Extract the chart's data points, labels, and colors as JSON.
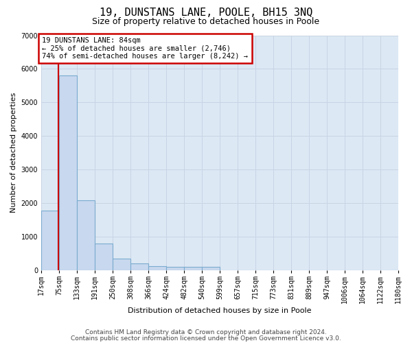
{
  "title": "19, DUNSTANS LANE, POOLE, BH15 3NQ",
  "subtitle": "Size of property relative to detached houses in Poole",
  "xlabel": "Distribution of detached houses by size in Poole",
  "ylabel": "Number of detached properties",
  "bin_labels": [
    "17sqm",
    "75sqm",
    "133sqm",
    "191sqm",
    "250sqm",
    "308sqm",
    "366sqm",
    "424sqm",
    "482sqm",
    "540sqm",
    "599sqm",
    "657sqm",
    "715sqm",
    "773sqm",
    "831sqm",
    "889sqm",
    "947sqm",
    "1006sqm",
    "1064sqm",
    "1122sqm",
    "1180sqm"
  ],
  "bar_heights": [
    1780,
    5800,
    2080,
    800,
    340,
    200,
    120,
    100,
    100,
    100,
    0,
    0,
    0,
    0,
    0,
    0,
    0,
    0,
    0,
    0
  ],
  "bar_color": "#c8d8ee",
  "bar_edge_color": "#7aabcf",
  "property_bin_index": 1,
  "vline_color": "#cc0000",
  "vline_x": 0.95,
  "annotation_line1": "19 DUNSTANS LANE: 84sqm",
  "annotation_line2": "← 25% of detached houses are smaller (2,746)",
  "annotation_line3": "74% of semi-detached houses are larger (8,242) →",
  "annotation_box_facecolor": "#ffffff",
  "annotation_box_edgecolor": "#cc0000",
  "ylim": [
    0,
    7000
  ],
  "yticks": [
    0,
    1000,
    2000,
    3000,
    4000,
    5000,
    6000,
    7000
  ],
  "grid_color": "#c8d4e4",
  "background_color": "#dce8f4",
  "footer_line1": "Contains HM Land Registry data © Crown copyright and database right 2024.",
  "footer_line2": "Contains public sector information licensed under the Open Government Licence v3.0.",
  "title_fontsize": 11,
  "subtitle_fontsize": 9,
  "axis_label_fontsize": 8,
  "tick_fontsize": 7,
  "annotation_fontsize": 7.5,
  "footer_fontsize": 6.5
}
